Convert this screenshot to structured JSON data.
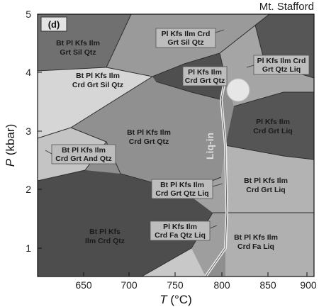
{
  "title": "Mt. Stafford",
  "panel_label": "(d)",
  "x_axis": {
    "label_var": "T",
    "label_unit": " (°C)",
    "ticks": [
      "650",
      "700",
      "750",
      "800",
      "850",
      "900"
    ]
  },
  "y_axis": {
    "label_var": "P",
    "label_unit": " (kbar)",
    "ticks": [
      "1",
      "2",
      "3",
      "4",
      "5"
    ]
  },
  "liq_in_label": "Liq-in",
  "fields": [
    {
      "name": "field-bt-pl-kfs-ilm-grt-sil-qtz",
      "lines": [
        "Bt Pl Kfs Ilm",
        "Grt Sil Qtz"
      ]
    },
    {
      "name": "field-pl-kfs-ilm-crd-grt-sil-qtz",
      "lines": [
        "Pl Kfs Ilm Crd",
        "Grt Sil Qtz"
      ]
    },
    {
      "name": "field-bt-pl-kfs-ilm-crd-grt-sil-qtz",
      "lines": [
        "Bt Pl Kfs Ilm",
        "Crd Grt Sil Qtz"
      ]
    },
    {
      "name": "field-pl-kfs-ilm-crd-grt-qtz",
      "lines": [
        "Pl Kfs Ilm",
        "Crd Grt Qtz"
      ]
    },
    {
      "name": "field-pl-kfs-ilm-crd-grt-qtz-liq",
      "lines": [
        "Pl Kfs Ilm Crd",
        "Grt Qtz Liq"
      ]
    },
    {
      "name": "field-bt-pl-kfs-ilm-crd-grt-qtz",
      "lines": [
        "Bt Pl Kfs Ilm",
        "Crd Grt Qtz"
      ]
    },
    {
      "name": "field-pl-kfs-ilm-crd-grt-liq",
      "lines": [
        "Pl Kfs Ilm",
        "Crd Grt Liq"
      ]
    },
    {
      "name": "field-bt-pl-kfs-ilm-crd-grt-and-qtz",
      "lines": [
        "Bt Pl Kfs Ilm",
        "Crd Grt And Qtz"
      ]
    },
    {
      "name": "field-bt-pl-kfs-ilm-crd-grt-qtz-liq",
      "lines": [
        "Bt Pl Kfs Ilm",
        "Crd Grt Qtz Liq"
      ]
    },
    {
      "name": "field-bt-pl-kfs-ilm-crd-grt-liq",
      "lines": [
        "Bt Pl Kfs Ilm",
        "Crd Grt Liq"
      ]
    },
    {
      "name": "field-bt-pl-kfs-ilm-crd-qtz",
      "lines": [
        "Bt Pl Kfs",
        "Ilm Crd Qtz"
      ]
    },
    {
      "name": "field-pl-kfs-ilm-crd-fa-qtz-liq",
      "lines": [
        "Pl Kfs Ilm",
        "Crd Fa Qtz Liq"
      ]
    },
    {
      "name": "field-bt-pl-kfs-ilm-crd-fa-liq",
      "lines": [
        "Bt Pl Kfs Ilm",
        "Crd Fa Liq"
      ]
    }
  ],
  "colors": {
    "dark": "#4a4a4a",
    "mid": "#8e8e8e",
    "mid_dark": "#6d6d6d",
    "light": "#c9c9c9",
    "lightest": "#dedede",
    "frame": "#111111"
  }
}
